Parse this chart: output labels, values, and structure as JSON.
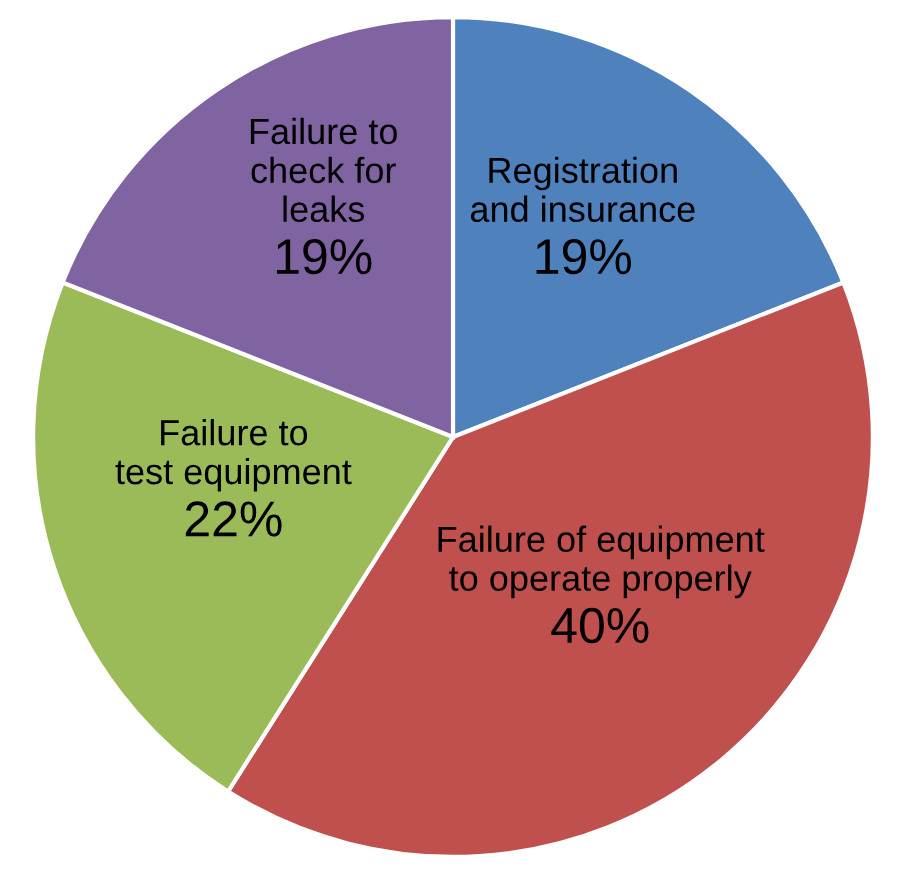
{
  "chart_data": {
    "type": "pie",
    "categories": [
      "Registration and insurance",
      "Failure of equipment to operate properly",
      "Failure to test equipment",
      "Failure to check for leaks"
    ],
    "values": [
      19,
      40,
      22,
      19
    ],
    "value_labels": [
      "19%",
      "40%",
      "22%",
      "19%"
    ],
    "colors": [
      "#4f81bd",
      "#c0504d",
      "#9bbb59",
      "#8064a2"
    ],
    "legend": false
  }
}
